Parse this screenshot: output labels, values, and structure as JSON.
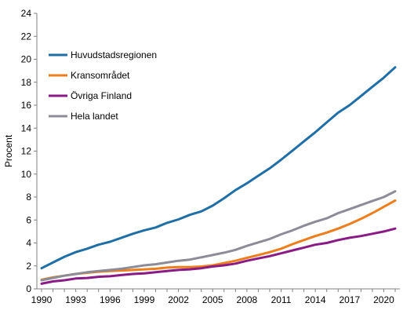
{
  "chart_data": {
    "type": "line",
    "title": "",
    "xlabel": "",
    "ylabel": "Procent",
    "xlim": [
      1990,
      2021
    ],
    "ylim": [
      0,
      24
    ],
    "xticks": [
      1990,
      1993,
      1996,
      1999,
      2002,
      2005,
      2008,
      2011,
      2014,
      2017,
      2020
    ],
    "yticks": [
      0,
      2,
      4,
      6,
      8,
      10,
      12,
      14,
      16,
      18,
      20,
      22,
      24
    ],
    "grid": false,
    "legend": "top-left",
    "x": [
      1990,
      1991,
      1992,
      1993,
      1994,
      1995,
      1996,
      1997,
      1998,
      1999,
      2000,
      2001,
      2002,
      2003,
      2004,
      2005,
      2006,
      2007,
      2008,
      2009,
      2010,
      2011,
      2012,
      2013,
      2014,
      2015,
      2016,
      2017,
      2018,
      2019,
      2020,
      2021
    ],
    "series": [
      {
        "name": "Huvudstadsregionen",
        "color": "#1f6fa6",
        "values": [
          1.8,
          2.3,
          2.8,
          3.2,
          3.5,
          3.85,
          4.1,
          4.45,
          4.8,
          5.1,
          5.35,
          5.75,
          6.05,
          6.45,
          6.75,
          7.25,
          7.9,
          8.6,
          9.2,
          9.85,
          10.5,
          11.25,
          12.05,
          12.85,
          13.65,
          14.5,
          15.35,
          16.0,
          16.8,
          17.6,
          18.4,
          19.3
        ]
      },
      {
        "name": "Kransområdet",
        "color": "#ee7d1c",
        "values": [
          0.8,
          1.0,
          1.15,
          1.3,
          1.4,
          1.5,
          1.55,
          1.6,
          1.65,
          1.7,
          1.75,
          1.85,
          1.9,
          1.9,
          1.95,
          2.05,
          2.25,
          2.45,
          2.7,
          2.95,
          3.2,
          3.5,
          3.9,
          4.25,
          4.6,
          4.9,
          5.25,
          5.65,
          6.1,
          6.6,
          7.15,
          7.7
        ]
      },
      {
        "name": "Övriga Finland",
        "color": "#8a1a85",
        "values": [
          0.45,
          0.65,
          0.75,
          0.9,
          0.95,
          1.05,
          1.1,
          1.2,
          1.3,
          1.35,
          1.45,
          1.55,
          1.65,
          1.7,
          1.8,
          1.95,
          2.05,
          2.2,
          2.45,
          2.65,
          2.85,
          3.1,
          3.35,
          3.6,
          3.85,
          4.0,
          4.25,
          4.45,
          4.6,
          4.8,
          5.0,
          5.25
        ]
      },
      {
        "name": "Hela landet",
        "color": "#8c8c97",
        "values": [
          0.75,
          0.95,
          1.15,
          1.3,
          1.45,
          1.55,
          1.65,
          1.75,
          1.9,
          2.05,
          2.15,
          2.3,
          2.45,
          2.55,
          2.75,
          2.95,
          3.15,
          3.4,
          3.75,
          4.05,
          4.35,
          4.75,
          5.1,
          5.5,
          5.85,
          6.15,
          6.6,
          6.95,
          7.3,
          7.65,
          8.0,
          8.5
        ]
      }
    ]
  }
}
